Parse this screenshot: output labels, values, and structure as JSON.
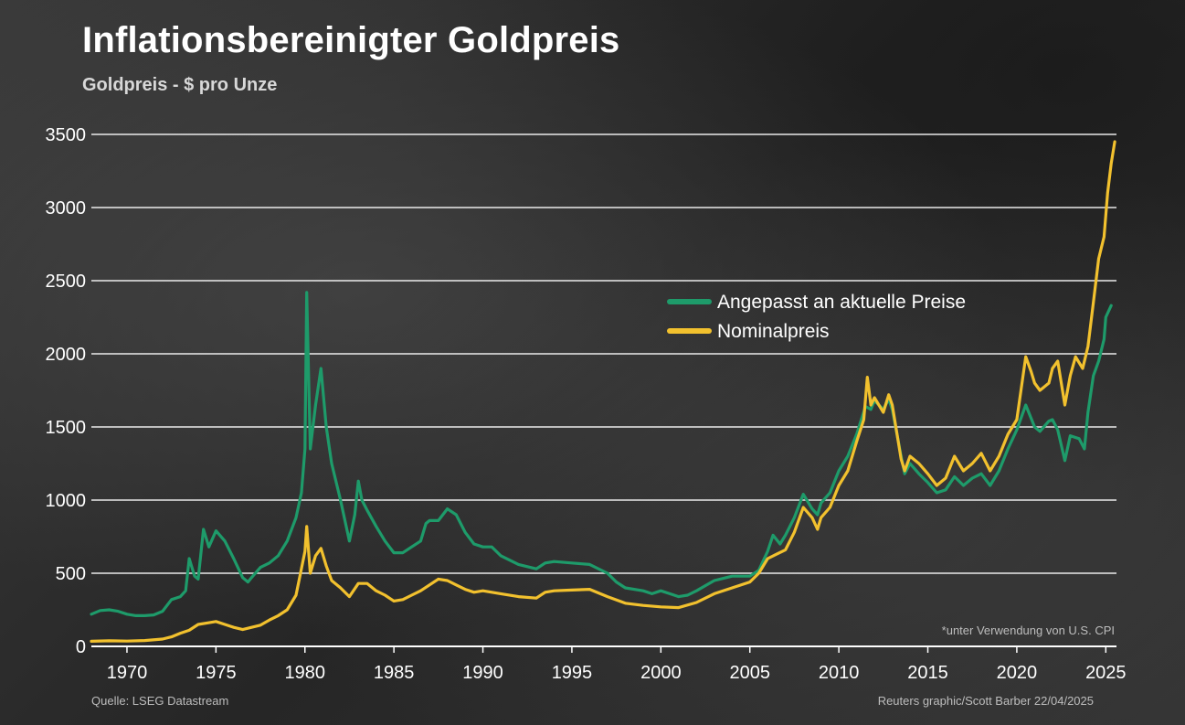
{
  "title": "Inflationsbereinigter Goldpreis",
  "subtitle": "Goldpreis - $ pro Unze",
  "source": "Quelle: LSEG Datastream",
  "credit": "Reuters graphic/Scott Barber 22/04/2025",
  "colors": {
    "background": "#2b2b2b",
    "grid": "#ffffff",
    "adjusted": "#1e9b6a",
    "nominal": "#f2c12e",
    "text": "#ffffff",
    "muted": "#bdbdbd"
  },
  "chart_data": {
    "type": "line",
    "title": "Inflationsbereinigter Goldpreis",
    "subtitle": "Goldpreis - $ pro Unze",
    "xlabel": "",
    "ylabel": "",
    "xlim": [
      1968,
      2025.6
    ],
    "ylim": [
      0,
      3500
    ],
    "x_ticks": [
      1970,
      1975,
      1980,
      1985,
      1990,
      1995,
      2000,
      2005,
      2010,
      2015,
      2020,
      2025
    ],
    "y_ticks": [
      0,
      500,
      1000,
      1500,
      2000,
      2500,
      3000,
      3500
    ],
    "grid": true,
    "legend_position": "right-center",
    "note": "*unter Verwendung von U.S. CPI",
    "series": [
      {
        "name": "Angepasst an aktuelle Preise",
        "color_key": "adjusted",
        "points": [
          [
            1968.0,
            220
          ],
          [
            1968.5,
            245
          ],
          [
            1969.0,
            250
          ],
          [
            1969.5,
            240
          ],
          [
            1970.0,
            220
          ],
          [
            1970.5,
            210
          ],
          [
            1971.0,
            210
          ],
          [
            1971.5,
            215
          ],
          [
            1972.0,
            240
          ],
          [
            1972.5,
            320
          ],
          [
            1973.0,
            340
          ],
          [
            1973.3,
            380
          ],
          [
            1973.5,
            600
          ],
          [
            1973.8,
            480
          ],
          [
            1974.0,
            460
          ],
          [
            1974.3,
            800
          ],
          [
            1974.6,
            680
          ],
          [
            1975.0,
            790
          ],
          [
            1975.5,
            720
          ],
          [
            1976.0,
            600
          ],
          [
            1976.5,
            470
          ],
          [
            1976.8,
            440
          ],
          [
            1977.0,
            470
          ],
          [
            1977.5,
            540
          ],
          [
            1978.0,
            570
          ],
          [
            1978.5,
            620
          ],
          [
            1979.0,
            720
          ],
          [
            1979.5,
            880
          ],
          [
            1979.8,
            1050
          ],
          [
            1980.0,
            1350
          ],
          [
            1980.1,
            2420
          ],
          [
            1980.3,
            1350
          ],
          [
            1980.6,
            1650
          ],
          [
            1980.9,
            1900
          ],
          [
            1981.2,
            1500
          ],
          [
            1981.5,
            1250
          ],
          [
            1982.0,
            1000
          ],
          [
            1982.5,
            720
          ],
          [
            1982.8,
            900
          ],
          [
            1983.0,
            1130
          ],
          [
            1983.2,
            1000
          ],
          [
            1983.5,
            930
          ],
          [
            1984.0,
            820
          ],
          [
            1984.5,
            720
          ],
          [
            1985.0,
            640
          ],
          [
            1985.5,
            640
          ],
          [
            1986.0,
            680
          ],
          [
            1986.5,
            720
          ],
          [
            1986.8,
            840
          ],
          [
            1987.0,
            860
          ],
          [
            1987.5,
            860
          ],
          [
            1988.0,
            940
          ],
          [
            1988.5,
            900
          ],
          [
            1989.0,
            780
          ],
          [
            1989.5,
            700
          ],
          [
            1990.0,
            680
          ],
          [
            1990.5,
            680
          ],
          [
            1991.0,
            620
          ],
          [
            1992.0,
            560
          ],
          [
            1993.0,
            530
          ],
          [
            1993.5,
            570
          ],
          [
            1994.0,
            580
          ],
          [
            1995.0,
            570
          ],
          [
            1996.0,
            560
          ],
          [
            1997.0,
            500
          ],
          [
            1997.5,
            440
          ],
          [
            1998.0,
            400
          ],
          [
            1999.0,
            380
          ],
          [
            1999.5,
            360
          ],
          [
            2000.0,
            380
          ],
          [
            2000.5,
            360
          ],
          [
            2001.0,
            340
          ],
          [
            2001.5,
            350
          ],
          [
            2002.0,
            380
          ],
          [
            2003.0,
            450
          ],
          [
            2004.0,
            480
          ],
          [
            2005.0,
            480
          ],
          [
            2005.5,
            520
          ],
          [
            2006.0,
            650
          ],
          [
            2006.3,
            760
          ],
          [
            2006.7,
            700
          ],
          [
            2007.0,
            760
          ],
          [
            2007.5,
            880
          ],
          [
            2008.0,
            1040
          ],
          [
            2008.5,
            940
          ],
          [
            2008.8,
            900
          ],
          [
            2009.0,
            980
          ],
          [
            2009.5,
            1050
          ],
          [
            2010.0,
            1200
          ],
          [
            2010.5,
            1300
          ],
          [
            2011.0,
            1450
          ],
          [
            2011.5,
            1640
          ],
          [
            2011.8,
            1620
          ],
          [
            2012.0,
            1680
          ],
          [
            2012.5,
            1620
          ],
          [
            2012.8,
            1690
          ],
          [
            2013.0,
            1620
          ],
          [
            2013.5,
            1300
          ],
          [
            2013.7,
            1180
          ],
          [
            2014.0,
            1250
          ],
          [
            2014.5,
            1180
          ],
          [
            2015.0,
            1120
          ],
          [
            2015.5,
            1050
          ],
          [
            2016.0,
            1070
          ],
          [
            2016.5,
            1160
          ],
          [
            2017.0,
            1100
          ],
          [
            2017.5,
            1150
          ],
          [
            2018.0,
            1180
          ],
          [
            2018.5,
            1100
          ],
          [
            2019.0,
            1200
          ],
          [
            2019.5,
            1350
          ],
          [
            2020.0,
            1480
          ],
          [
            2020.5,
            1650
          ],
          [
            2021.0,
            1500
          ],
          [
            2021.3,
            1470
          ],
          [
            2021.8,
            1540
          ],
          [
            2022.0,
            1550
          ],
          [
            2022.3,
            1480
          ],
          [
            2022.7,
            1270
          ],
          [
            2023.0,
            1440
          ],
          [
            2023.5,
            1420
          ],
          [
            2023.8,
            1350
          ],
          [
            2024.0,
            1600
          ],
          [
            2024.3,
            1850
          ],
          [
            2024.6,
            1950
          ],
          [
            2024.9,
            2100
          ],
          [
            2025.0,
            2250
          ],
          [
            2025.3,
            2330
          ]
        ]
      },
      {
        "name": "Nominalpreis",
        "color_key": "nominal",
        "points": [
          [
            1968.0,
            35
          ],
          [
            1969.0,
            38
          ],
          [
            1970.0,
            36
          ],
          [
            1971.0,
            40
          ],
          [
            1972.0,
            50
          ],
          [
            1972.5,
            65
          ],
          [
            1973.0,
            90
          ],
          [
            1973.5,
            110
          ],
          [
            1974.0,
            150
          ],
          [
            1974.5,
            160
          ],
          [
            1975.0,
            170
          ],
          [
            1975.5,
            150
          ],
          [
            1976.0,
            130
          ],
          [
            1976.5,
            115
          ],
          [
            1977.0,
            130
          ],
          [
            1977.5,
            145
          ],
          [
            1978.0,
            180
          ],
          [
            1978.5,
            210
          ],
          [
            1979.0,
            250
          ],
          [
            1979.5,
            350
          ],
          [
            1980.0,
            650
          ],
          [
            1980.1,
            820
          ],
          [
            1980.3,
            500
          ],
          [
            1980.6,
            620
          ],
          [
            1980.9,
            670
          ],
          [
            1981.2,
            550
          ],
          [
            1981.5,
            450
          ],
          [
            1982.0,
            400
          ],
          [
            1982.5,
            340
          ],
          [
            1983.0,
            430
          ],
          [
            1983.5,
            430
          ],
          [
            1984.0,
            380
          ],
          [
            1984.5,
            350
          ],
          [
            1985.0,
            310
          ],
          [
            1985.5,
            320
          ],
          [
            1986.0,
            350
          ],
          [
            1986.5,
            380
          ],
          [
            1987.0,
            420
          ],
          [
            1987.5,
            460
          ],
          [
            1988.0,
            450
          ],
          [
            1988.5,
            420
          ],
          [
            1989.0,
            390
          ],
          [
            1989.5,
            370
          ],
          [
            1990.0,
            380
          ],
          [
            1991.0,
            360
          ],
          [
            1992.0,
            340
          ],
          [
            1993.0,
            330
          ],
          [
            1993.5,
            370
          ],
          [
            1994.0,
            380
          ],
          [
            1995.0,
            385
          ],
          [
            1996.0,
            390
          ],
          [
            1997.0,
            340
          ],
          [
            1998.0,
            295
          ],
          [
            1999.0,
            280
          ],
          [
            2000.0,
            270
          ],
          [
            2001.0,
            265
          ],
          [
            2002.0,
            300
          ],
          [
            2003.0,
            360
          ],
          [
            2004.0,
            400
          ],
          [
            2005.0,
            440
          ],
          [
            2005.5,
            500
          ],
          [
            2006.0,
            600
          ],
          [
            2006.5,
            630
          ],
          [
            2007.0,
            660
          ],
          [
            2007.5,
            780
          ],
          [
            2008.0,
            950
          ],
          [
            2008.5,
            880
          ],
          [
            2008.8,
            800
          ],
          [
            2009.0,
            880
          ],
          [
            2009.5,
            950
          ],
          [
            2010.0,
            1100
          ],
          [
            2010.5,
            1200
          ],
          [
            2011.0,
            1400
          ],
          [
            2011.4,
            1550
          ],
          [
            2011.6,
            1840
          ],
          [
            2011.8,
            1650
          ],
          [
            2012.0,
            1700
          ],
          [
            2012.5,
            1600
          ],
          [
            2012.8,
            1720
          ],
          [
            2013.0,
            1650
          ],
          [
            2013.5,
            1280
          ],
          [
            2013.7,
            1200
          ],
          [
            2014.0,
            1300
          ],
          [
            2014.5,
            1250
          ],
          [
            2015.0,
            1180
          ],
          [
            2015.5,
            1100
          ],
          [
            2016.0,
            1150
          ],
          [
            2016.5,
            1300
          ],
          [
            2017.0,
            1200
          ],
          [
            2017.5,
            1250
          ],
          [
            2018.0,
            1320
          ],
          [
            2018.5,
            1200
          ],
          [
            2019.0,
            1300
          ],
          [
            2019.5,
            1450
          ],
          [
            2020.0,
            1550
          ],
          [
            2020.5,
            1980
          ],
          [
            2020.8,
            1880
          ],
          [
            2021.0,
            1800
          ],
          [
            2021.3,
            1750
          ],
          [
            2021.8,
            1800
          ],
          [
            2022.0,
            1900
          ],
          [
            2022.3,
            1950
          ],
          [
            2022.7,
            1650
          ],
          [
            2023.0,
            1850
          ],
          [
            2023.3,
            1980
          ],
          [
            2023.7,
            1900
          ],
          [
            2024.0,
            2050
          ],
          [
            2024.3,
            2350
          ],
          [
            2024.6,
            2650
          ],
          [
            2024.9,
            2800
          ],
          [
            2025.1,
            3100
          ],
          [
            2025.3,
            3300
          ],
          [
            2025.5,
            3450
          ]
        ]
      }
    ]
  }
}
